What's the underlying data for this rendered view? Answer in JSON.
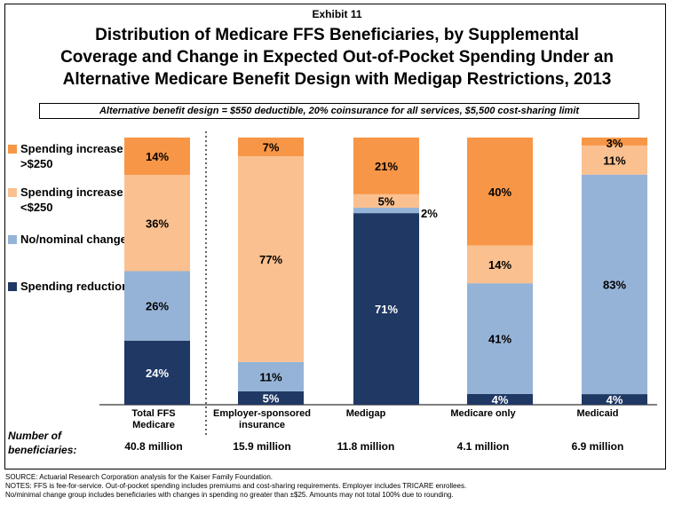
{
  "exhibit_label": "Exhibit 11",
  "title_lines": [
    "Distribution of Medicare FFS Beneficiaries, by Supplemental",
    "Coverage and Change in Expected Out-of-Pocket Spending Under an",
    "Alternative Medicare Benefit Design with Medigap Restrictions, 2013"
  ],
  "subtitle": "Alternative benefit design = $550 deductible, 20% coinsurance for all services, $5,500 cost-sharing limit",
  "colors": {
    "spending_reduction": "#1f3864",
    "no_change": "#95b3d7",
    "increase_small": "#fac090",
    "increase_large": "#f79646"
  },
  "legend": [
    {
      "label": "Spending increase >$250",
      "color": "#f79646"
    },
    {
      "label": "Spending increase <$250",
      "color": "#fac090"
    },
    {
      "label": "No/nominal change",
      "color": "#95b3d7"
    },
    {
      "label": "Spending reduction",
      "color": "#1f3864"
    }
  ],
  "chart_data": {
    "type": "bar",
    "stacked": true,
    "ylim": [
      0,
      100
    ],
    "categories": [
      "Total FFS Medicare",
      "Employer-sponsored insurance",
      "Medigap",
      "Medicare only",
      "Medicaid"
    ],
    "series": [
      {
        "name": "Spending reduction",
        "values": [
          24,
          5,
          71,
          4,
          4
        ],
        "labels": [
          "24%",
          "5%",
          "71%",
          "4%",
          "4%"
        ]
      },
      {
        "name": "No/nominal change",
        "values": [
          26,
          11,
          2,
          41,
          83
        ],
        "labels": [
          "26%",
          "11%",
          "2%",
          "41%",
          "83%"
        ]
      },
      {
        "name": "Spending increase <$250",
        "values": [
          36,
          77,
          5,
          14,
          11
        ],
        "labels": [
          "36%",
          "77%",
          "5%",
          "14%",
          "11%"
        ]
      },
      {
        "name": "Spending increase >$250",
        "values": [
          14,
          7,
          21,
          40,
          3
        ],
        "labels": [
          "14%",
          "7%",
          "21%",
          "40%",
          "3%"
        ]
      }
    ]
  },
  "beneficiaries_label": "Number of beneficiaries:",
  "beneficiaries": [
    "40.8 million",
    "15.9 million",
    "11.8 million",
    "4.1 million",
    "6.9 million"
  ],
  "notes": [
    "SOURCE: Actuarial Research Corporation analysis for the Kaiser Family Foundation.",
    "NOTES: FFS is fee-for-service. Out-of-pocket spending includes premiums and cost-sharing requirements. Employer includes TRICARE enrollees.",
    "No/minimal change group includes beneficiaries with changes in spending no greater than ±$25. Amounts may not total 100% due to rounding."
  ]
}
